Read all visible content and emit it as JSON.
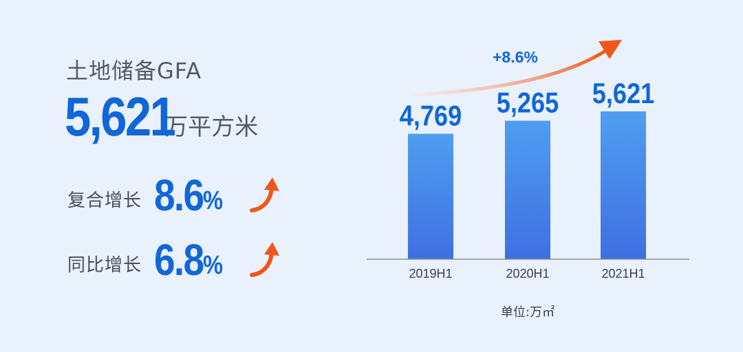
{
  "summary": {
    "title": "土地储备GFA",
    "big_value": "5,621",
    "big_unit": "万平方米",
    "stats": [
      {
        "label": "复合增长",
        "value": "8.6",
        "unit": "%"
      },
      {
        "label": "同比增长",
        "value": "6.8",
        "unit": "%"
      }
    ]
  },
  "chart_data": {
    "type": "bar",
    "categories": [
      "2019H1",
      "2020H1",
      "2021H1"
    ],
    "values": [
      4769,
      5265,
      5621
    ],
    "value_labels": [
      "4,769",
      "5,265",
      "5,621"
    ],
    "growth_annotation": "+8.6%",
    "unit_note": "单位:万㎡",
    "colors": {
      "bar_top": "#4f9ef0",
      "bar_bottom": "#3f6fe2",
      "label": "#1166d8",
      "arrow_start": "#ffd9c4",
      "arrow_end": "#f0561a",
      "axis": "#8a8f99"
    }
  },
  "colors": {
    "accent": "#1166d8",
    "arrow": "#f0561a",
    "background": "#e9f1fd"
  }
}
